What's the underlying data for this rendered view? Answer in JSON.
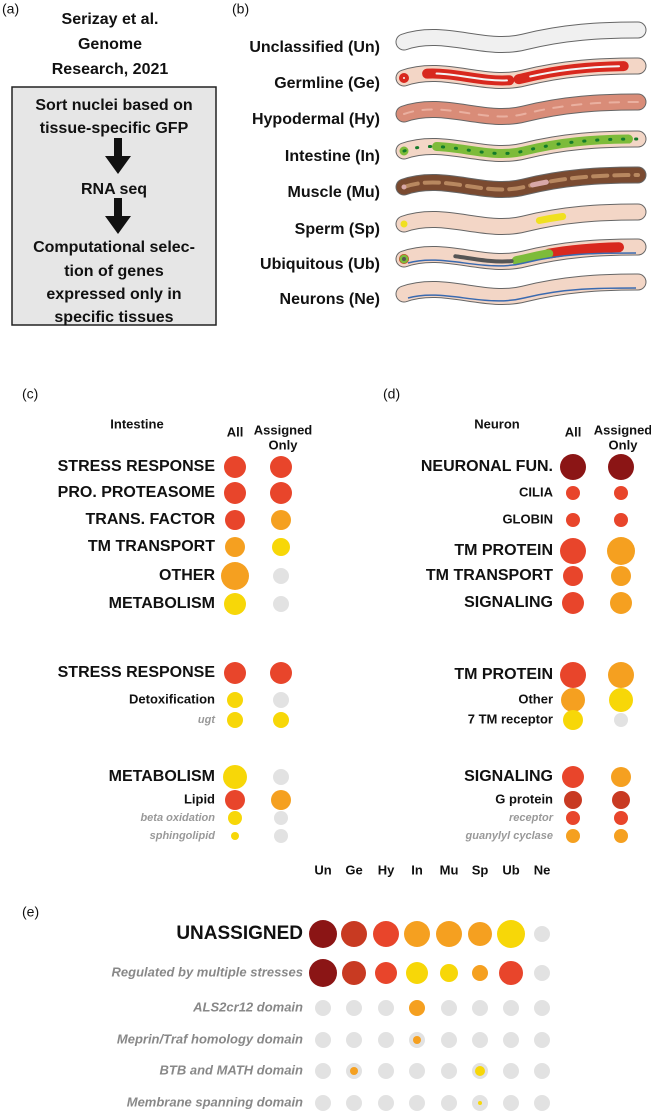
{
  "panel_a": {
    "label": "(a)",
    "citation": [
      "Serizay et al.",
      "Genome",
      "Research, 2021"
    ],
    "steps": [
      "Sort nuclei based on",
      "tissue-specific GFP",
      "RNA seq",
      "Computational selec-",
      "tion of genes",
      "expressed only in",
      "specific tissues"
    ]
  },
  "panel_b": {
    "label": "(b)",
    "tissues": [
      "Unclassified (Un)",
      "Germline (Ge)",
      "Hypodermal (Hy)",
      "Intestine (In)",
      "Muscle (Mu)",
      "Sperm (Sp)",
      "Ubiquitous (Ub)",
      "Neurons (Ne)"
    ]
  },
  "panel_c": {
    "label": "(c)",
    "title": "Intestine",
    "column_all": "All",
    "column_assigned": [
      "Assigned",
      "Only"
    ],
    "rows": [
      "STRESS RESPONSE",
      "PRO. PROTEASOME",
      "TRANS. FACTOR",
      "TM TRANSPORT",
      "OTHER",
      "METABOLISM",
      "STRESS RESPONSE",
      "Detoxification",
      "ugt",
      "METABOLISM",
      "Lipid",
      "beta oxidation",
      "sphingolipid"
    ]
  },
  "panel_d": {
    "label": "(d)",
    "title": "Neuron",
    "column_all": "All",
    "column_assigned": [
      "Assigned",
      "Only"
    ],
    "rows": [
      "NEURONAL FUN.",
      "CILIA",
      "GLOBIN",
      "TM PROTEIN",
      "TM TRANSPORT",
      "SIGNALING",
      "TM PROTEIN",
      "Other",
      "7 TM receptor",
      "SIGNALING",
      "G protein",
      "receptor",
      "guanylyl cyclase"
    ]
  },
  "panel_e": {
    "label": "(e)",
    "columns": [
      "Un",
      "Ge",
      "Hy",
      "In",
      "Mu",
      "Sp",
      "Ub",
      "Ne"
    ],
    "rows": [
      "UNASSIGNED",
      "Regulated by multiple stresses",
      "ALS2cr12 domain",
      "Meprin/Traf homology domain",
      "BTB and MATH domain",
      "Membrane spanning domain"
    ]
  }
}
